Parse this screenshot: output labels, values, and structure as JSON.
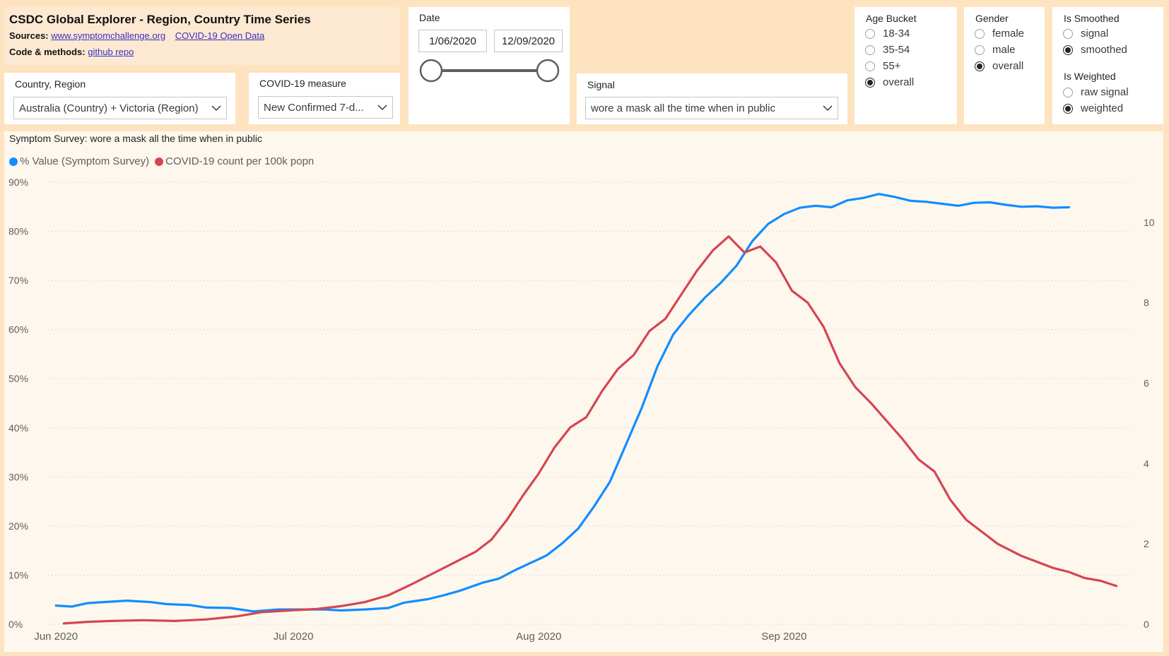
{
  "header": {
    "title": "CSDC Global Explorer - Region, Country Time Series",
    "sources_label": "Sources:",
    "source_link_1": "www.symptomchallenge.org",
    "source_link_2": "COVID-19 Open Data",
    "code_label": "Code & methods:",
    "code_link": "github repo"
  },
  "country_slicer": {
    "title": "Country, Region",
    "value": "Australia (Country) + Victoria (Region)"
  },
  "measure_slicer": {
    "title": "COVID-19 measure",
    "value": "New Confirmed 7-d..."
  },
  "date_slicer": {
    "title": "Date",
    "start": "1/06/2020",
    "end": "12/09/2020"
  },
  "signal_slicer": {
    "title": "Signal",
    "value": "wore a mask all the time when in public"
  },
  "age_slicer": {
    "title": "Age Bucket",
    "options": [
      {
        "label": "18-34",
        "selected": false
      },
      {
        "label": "35-54",
        "selected": false
      },
      {
        "label": "55+",
        "selected": false
      },
      {
        "label": "overall",
        "selected": true
      }
    ]
  },
  "gender_slicer": {
    "title": "Gender",
    "options": [
      {
        "label": "female",
        "selected": false
      },
      {
        "label": "male",
        "selected": false
      },
      {
        "label": "overall",
        "selected": true
      }
    ]
  },
  "smoothed_slicer": {
    "title": "Is Smoothed",
    "options": [
      {
        "label": "signal",
        "selected": false
      },
      {
        "label": "smoothed",
        "selected": true
      }
    ]
  },
  "weighted_slicer": {
    "title": "Is Weighted",
    "options": [
      {
        "label": "raw signal",
        "selected": false
      },
      {
        "label": "weighted",
        "selected": true
      }
    ]
  },
  "colors": {
    "blue": "#118dff",
    "red": "#d64550",
    "grid": "#c8c6c4",
    "axis_text": "#605e5c"
  },
  "chart_data": {
    "type": "line",
    "title": "Symptom Survey: wore a mask all the time when in public",
    "x_start": "2020-06-01",
    "x_end": "2020-09-12",
    "x_ticks": [
      {
        "label": "Jun 2020",
        "date": "2020-06-01"
      },
      {
        "label": "Jul 2020",
        "date": "2020-07-01"
      },
      {
        "label": "Aug 2020",
        "date": "2020-08-01"
      },
      {
        "label": "Sep 2020",
        "date": "2020-09-01"
      }
    ],
    "y_left": {
      "min": 0,
      "max": 90,
      "ticks": [
        "0%",
        "10%",
        "20%",
        "30%",
        "40%",
        "50%",
        "60%",
        "70%",
        "80%",
        "90%"
      ]
    },
    "y_right": {
      "min": 0,
      "max": 11,
      "ticks": [
        "0",
        "2",
        "4",
        "6",
        "8",
        "10"
      ]
    },
    "grid": true,
    "legend_position": "top-left",
    "series": [
      {
        "name": "% Value (Symptom Survey)",
        "axis": "left",
        "points": [
          [
            "2020-06-01",
            3.8
          ],
          [
            "2020-06-03",
            3.6
          ],
          [
            "2020-06-05",
            4.3
          ],
          [
            "2020-06-08",
            4.6
          ],
          [
            "2020-06-10",
            4.8
          ],
          [
            "2020-06-13",
            4.5
          ],
          [
            "2020-06-15",
            4.1
          ],
          [
            "2020-06-18",
            3.9
          ],
          [
            "2020-06-20",
            3.4
          ],
          [
            "2020-06-23",
            3.3
          ],
          [
            "2020-06-26",
            2.6
          ],
          [
            "2020-06-29",
            3.0
          ],
          [
            "2020-07-02",
            3.0
          ],
          [
            "2020-07-05",
            3.0
          ],
          [
            "2020-07-07",
            2.8
          ],
          [
            "2020-07-10",
            3.0
          ],
          [
            "2020-07-13",
            3.3
          ],
          [
            "2020-07-15",
            4.4
          ],
          [
            "2020-07-18",
            5.1
          ],
          [
            "2020-07-20",
            5.9
          ],
          [
            "2020-07-22",
            6.8
          ],
          [
            "2020-07-25",
            8.5
          ],
          [
            "2020-07-27",
            9.3
          ],
          [
            "2020-07-29",
            11.0
          ],
          [
            "2020-07-31",
            12.5
          ],
          [
            "2020-08-02",
            14.0
          ],
          [
            "2020-08-04",
            16.5
          ],
          [
            "2020-08-06",
            19.5
          ],
          [
            "2020-08-08",
            24.0
          ],
          [
            "2020-08-10",
            29.0
          ],
          [
            "2020-08-12",
            36.5
          ],
          [
            "2020-08-14",
            44.0
          ],
          [
            "2020-08-16",
            52.5
          ],
          [
            "2020-08-18",
            59.0
          ],
          [
            "2020-08-20",
            63.0
          ],
          [
            "2020-08-22",
            66.5
          ],
          [
            "2020-08-24",
            69.5
          ],
          [
            "2020-08-26",
            73.0
          ],
          [
            "2020-08-28",
            78.0
          ],
          [
            "2020-08-30",
            81.5
          ],
          [
            "2020-09-01",
            83.5
          ],
          [
            "2020-09-03",
            84.8
          ],
          [
            "2020-09-05",
            85.2
          ],
          [
            "2020-09-07",
            84.9
          ],
          [
            "2020-09-09",
            86.3
          ],
          [
            "2020-09-11",
            86.8
          ],
          [
            "2020-09-13",
            87.6
          ],
          [
            "2020-09-15",
            87.0
          ],
          [
            "2020-09-17",
            86.2
          ],
          [
            "2020-09-19",
            86.0
          ],
          [
            "2020-09-21",
            85.6
          ],
          [
            "2020-09-23",
            85.2
          ],
          [
            "2020-09-25",
            85.8
          ],
          [
            "2020-09-27",
            85.9
          ],
          [
            "2020-09-29",
            85.4
          ],
          [
            "2020-10-01",
            85.0
          ],
          [
            "2020-10-03",
            85.1
          ],
          [
            "2020-10-05",
            84.8
          ],
          [
            "2020-10-07",
            84.9
          ]
        ]
      },
      {
        "name": "COVID-19 count per 100k popn",
        "axis": "right",
        "points": [
          [
            "2020-06-02",
            0.02
          ],
          [
            "2020-06-05",
            0.06
          ],
          [
            "2020-06-08",
            0.08
          ],
          [
            "2020-06-12",
            0.1
          ],
          [
            "2020-06-16",
            0.08
          ],
          [
            "2020-06-20",
            0.12
          ],
          [
            "2020-06-24",
            0.2
          ],
          [
            "2020-06-27",
            0.3
          ],
          [
            "2020-07-01",
            0.35
          ],
          [
            "2020-07-04",
            0.38
          ],
          [
            "2020-07-07",
            0.45
          ],
          [
            "2020-07-10",
            0.55
          ],
          [
            "2020-07-13",
            0.72
          ],
          [
            "2020-07-16",
            1.0
          ],
          [
            "2020-07-19",
            1.3
          ],
          [
            "2020-07-22",
            1.6
          ],
          [
            "2020-07-24",
            1.8
          ],
          [
            "2020-07-26",
            2.1
          ],
          [
            "2020-07-28",
            2.6
          ],
          [
            "2020-07-30",
            3.2
          ],
          [
            "2020-08-01",
            3.75
          ],
          [
            "2020-08-03",
            4.4
          ],
          [
            "2020-08-05",
            4.9
          ],
          [
            "2020-08-07",
            5.15
          ],
          [
            "2020-08-09",
            5.8
          ],
          [
            "2020-08-11",
            6.35
          ],
          [
            "2020-08-13",
            6.7
          ],
          [
            "2020-08-15",
            7.3
          ],
          [
            "2020-08-17",
            7.6
          ],
          [
            "2020-08-19",
            8.2
          ],
          [
            "2020-08-21",
            8.8
          ],
          [
            "2020-08-23",
            9.3
          ],
          [
            "2020-08-25",
            9.65
          ],
          [
            "2020-08-27",
            9.25
          ],
          [
            "2020-08-29",
            9.4
          ],
          [
            "2020-08-31",
            9.0
          ],
          [
            "2020-09-02",
            8.3
          ],
          [
            "2020-09-04",
            8.0
          ],
          [
            "2020-09-06",
            7.4
          ],
          [
            "2020-09-08",
            6.5
          ],
          [
            "2020-09-10",
            5.9
          ],
          [
            "2020-09-12",
            5.5
          ],
          [
            "2020-09-14",
            5.05
          ],
          [
            "2020-09-16",
            4.6
          ],
          [
            "2020-09-18",
            4.1
          ],
          [
            "2020-09-20",
            3.8
          ],
          [
            "2020-09-22",
            3.1
          ],
          [
            "2020-09-24",
            2.6
          ],
          [
            "2020-09-26",
            2.3
          ],
          [
            "2020-09-28",
            2.0
          ],
          [
            "2020-10-01",
            1.7
          ],
          [
            "2020-10-03",
            1.55
          ],
          [
            "2020-10-05",
            1.4
          ],
          [
            "2020-10-07",
            1.3
          ],
          [
            "2020-10-09",
            1.15
          ],
          [
            "2020-10-11",
            1.08
          ],
          [
            "2020-10-13",
            0.95
          ]
        ]
      }
    ]
  }
}
